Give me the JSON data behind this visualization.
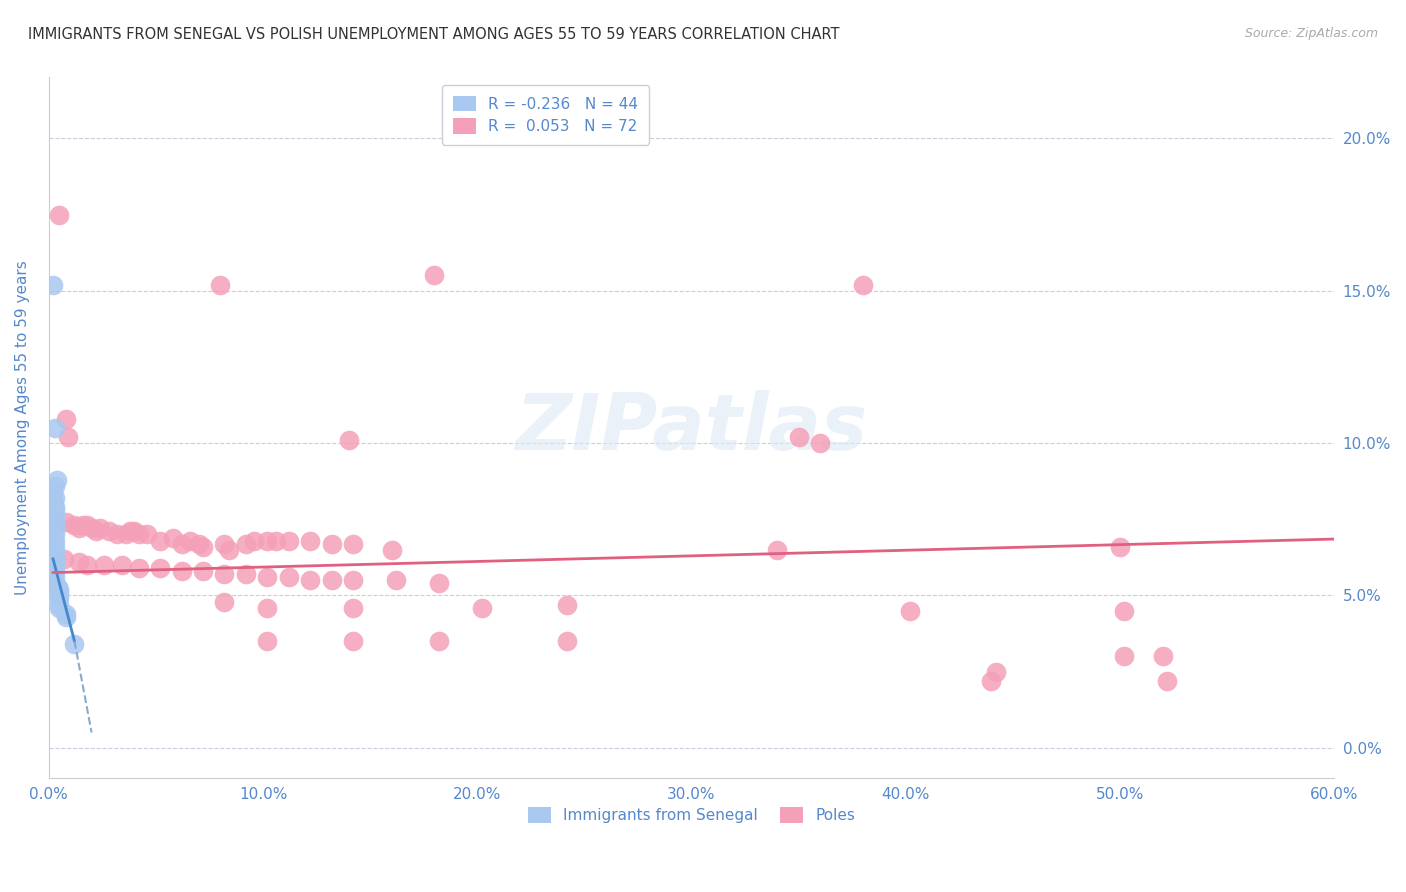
{
  "title": "IMMIGRANTS FROM SENEGAL VS POLISH UNEMPLOYMENT AMONG AGES 55 TO 59 YEARS CORRELATION CHART",
  "source": "Source: ZipAtlas.com",
  "ylabel": "Unemployment Among Ages 55 to 59 years",
  "background_color": "#ffffff",
  "watermark": "ZIPatlas",
  "blue_scatter": [
    [
      0.2,
      15.2
    ],
    [
      0.3,
      10.5
    ],
    [
      0.4,
      8.8
    ],
    [
      0.3,
      8.6
    ],
    [
      0.2,
      8.4
    ],
    [
      0.3,
      8.2
    ],
    [
      0.2,
      8.1
    ],
    [
      0.2,
      8.0
    ],
    [
      0.3,
      7.9
    ],
    [
      0.3,
      7.8
    ],
    [
      0.2,
      7.7
    ],
    [
      0.3,
      7.6
    ],
    [
      0.2,
      7.5
    ],
    [
      0.3,
      7.4
    ],
    [
      0.2,
      7.3
    ],
    [
      0.3,
      7.2
    ],
    [
      0.2,
      7.1
    ],
    [
      0.3,
      7.0
    ],
    [
      0.2,
      6.9
    ],
    [
      0.3,
      6.8
    ],
    [
      0.2,
      6.7
    ],
    [
      0.3,
      6.6
    ],
    [
      0.2,
      6.5
    ],
    [
      0.3,
      6.4
    ],
    [
      0.2,
      6.3
    ],
    [
      0.3,
      6.2
    ],
    [
      0.2,
      6.1
    ],
    [
      0.3,
      6.0
    ],
    [
      0.2,
      5.9
    ],
    [
      0.3,
      5.8
    ],
    [
      0.2,
      5.7
    ],
    [
      0.3,
      5.6
    ],
    [
      0.2,
      5.5
    ],
    [
      0.3,
      5.4
    ],
    [
      0.4,
      5.3
    ],
    [
      0.5,
      5.2
    ],
    [
      0.5,
      5.1
    ],
    [
      0.5,
      5.0
    ],
    [
      0.5,
      4.9
    ],
    [
      0.5,
      4.7
    ],
    [
      0.5,
      4.6
    ],
    [
      0.8,
      4.4
    ],
    [
      0.8,
      4.3
    ],
    [
      1.2,
      3.4
    ]
  ],
  "pink_scatter": [
    [
      0.5,
      17.5
    ],
    [
      8.0,
      15.2
    ],
    [
      18.0,
      15.5
    ],
    [
      38.0,
      15.2
    ],
    [
      0.8,
      10.8
    ],
    [
      0.9,
      10.2
    ],
    [
      14.0,
      10.1
    ],
    [
      35.0,
      10.2
    ],
    [
      36.0,
      10.0
    ],
    [
      0.8,
      7.4
    ],
    [
      1.2,
      7.3
    ],
    [
      1.4,
      7.2
    ],
    [
      1.6,
      7.3
    ],
    [
      1.8,
      7.3
    ],
    [
      2.0,
      7.2
    ],
    [
      2.2,
      7.1
    ],
    [
      2.4,
      7.2
    ],
    [
      2.8,
      7.1
    ],
    [
      3.2,
      7.0
    ],
    [
      3.6,
      7.0
    ],
    [
      3.8,
      7.1
    ],
    [
      4.0,
      7.1
    ],
    [
      4.2,
      7.0
    ],
    [
      4.6,
      7.0
    ],
    [
      5.2,
      6.8
    ],
    [
      5.8,
      6.9
    ],
    [
      6.2,
      6.7
    ],
    [
      6.6,
      6.8
    ],
    [
      7.0,
      6.7
    ],
    [
      7.2,
      6.6
    ],
    [
      8.2,
      6.7
    ],
    [
      8.4,
      6.5
    ],
    [
      9.2,
      6.7
    ],
    [
      9.6,
      6.8
    ],
    [
      10.2,
      6.8
    ],
    [
      10.6,
      6.8
    ],
    [
      11.2,
      6.8
    ],
    [
      12.2,
      6.8
    ],
    [
      13.2,
      6.7
    ],
    [
      14.2,
      6.7
    ],
    [
      16.0,
      6.5
    ],
    [
      34.0,
      6.5
    ],
    [
      50.0,
      6.6
    ],
    [
      0.7,
      6.2
    ],
    [
      1.4,
      6.1
    ],
    [
      1.8,
      6.0
    ],
    [
      2.6,
      6.0
    ],
    [
      3.4,
      6.0
    ],
    [
      4.2,
      5.9
    ],
    [
      5.2,
      5.9
    ],
    [
      6.2,
      5.8
    ],
    [
      7.2,
      5.8
    ],
    [
      8.2,
      5.7
    ],
    [
      9.2,
      5.7
    ],
    [
      10.2,
      5.6
    ],
    [
      11.2,
      5.6
    ],
    [
      12.2,
      5.5
    ],
    [
      13.2,
      5.5
    ],
    [
      14.2,
      5.5
    ],
    [
      16.2,
      5.5
    ],
    [
      18.2,
      5.4
    ],
    [
      8.2,
      4.8
    ],
    [
      10.2,
      4.6
    ],
    [
      14.2,
      4.6
    ],
    [
      20.2,
      4.6
    ],
    [
      24.2,
      4.7
    ],
    [
      40.2,
      4.5
    ],
    [
      50.2,
      4.5
    ],
    [
      10.2,
      3.5
    ],
    [
      14.2,
      3.5
    ],
    [
      18.2,
      3.5
    ],
    [
      24.2,
      3.5
    ],
    [
      44.2,
      2.5
    ],
    [
      50.2,
      3.0
    ],
    [
      52.2,
      2.2
    ],
    [
      44.0,
      2.2
    ],
    [
      52.0,
      3.0
    ]
  ],
  "blue_line": {
    "x0": 0.2,
    "y0": 6.2,
    "x1": 1.2,
    "y1": 3.5
  },
  "blue_dashed_line": {
    "x0": 1.2,
    "y0": 3.5,
    "x1": 2.0,
    "y1": 0.5
  },
  "pink_line": {
    "x0": 0.2,
    "y0": 5.75,
    "x1": 60.0,
    "y1": 6.85
  },
  "xlim": [
    0.0,
    60.0
  ],
  "ylim": [
    -1.0,
    22.0
  ],
  "xticks": [
    0.0,
    10.0,
    20.0,
    30.0,
    40.0,
    50.0,
    60.0
  ],
  "xticklabels": [
    "0.0%",
    "10.0%",
    "20.0%",
    "30.0%",
    "40.0%",
    "50.0%",
    "60.0%"
  ],
  "yticks": [
    0.0,
    5.0,
    10.0,
    15.0,
    20.0
  ],
  "yticklabels_right": [
    "0.0%",
    "5.0%",
    "10.0%",
    "15.0%",
    "20.0%"
  ],
  "blue_color": "#a8c8f0",
  "pink_color": "#f4a0b8",
  "blue_line_color": "#4488cc",
  "blue_dashed_color": "#88aacc",
  "pink_line_color": "#e06080",
  "tick_label_color": "#5588cc",
  "grid_color": "#ccccdd",
  "title_color": "#333333",
  "source_color": "#aaaaaa"
}
